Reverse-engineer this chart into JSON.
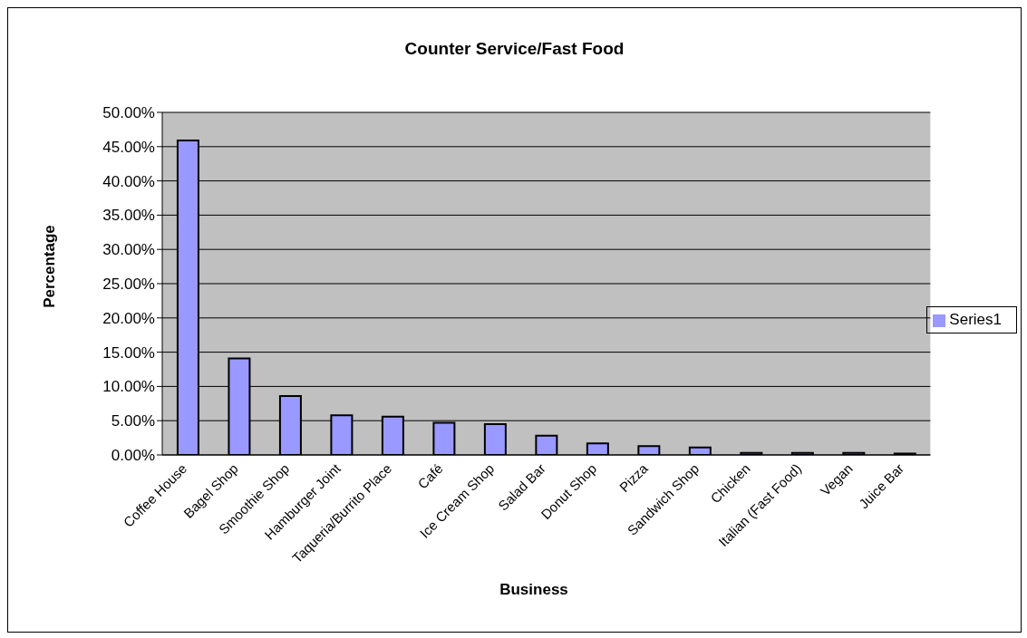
{
  "chart_data": {
    "type": "bar",
    "title": "Counter Service/Fast Food",
    "xlabel": "Business",
    "ylabel": "Percentage",
    "categories": [
      "Coffee House",
      "Bagel Shop",
      "Smoothie Shop",
      "Hamburger Joint",
      "Taqueria/Burrito Place",
      "Café",
      "Ice Cream Shop",
      "Salad Bar",
      "Donut Shop",
      "Pizza",
      "Sandwich Shop",
      "Chicken",
      "Italian (Fast Food)",
      "Vegan",
      "Juice Bar"
    ],
    "series": [
      {
        "name": "Series1",
        "color": "#9999ff",
        "values": [
          45.9,
          14.1,
          8.6,
          5.8,
          5.6,
          4.7,
          4.5,
          2.8,
          1.7,
          1.3,
          1.1,
          0.3,
          0.3,
          0.3,
          0.2
        ]
      }
    ],
    "ylim": [
      0,
      50
    ],
    "yticks": [
      {
        "value": 0,
        "label": "0.00%"
      },
      {
        "value": 5,
        "label": "5.00%"
      },
      {
        "value": 10,
        "label": "10.00%"
      },
      {
        "value": 15,
        "label": "15.00%"
      },
      {
        "value": 20,
        "label": "20.00%"
      },
      {
        "value": 25,
        "label": "25.00%"
      },
      {
        "value": 30,
        "label": "30.00%"
      },
      {
        "value": 35,
        "label": "35.00%"
      },
      {
        "value": 40,
        "label": "40.00%"
      },
      {
        "value": 45,
        "label": "45.00%"
      },
      {
        "value": 50,
        "label": "50.00%"
      }
    ],
    "grid": "y",
    "legend": "right"
  }
}
